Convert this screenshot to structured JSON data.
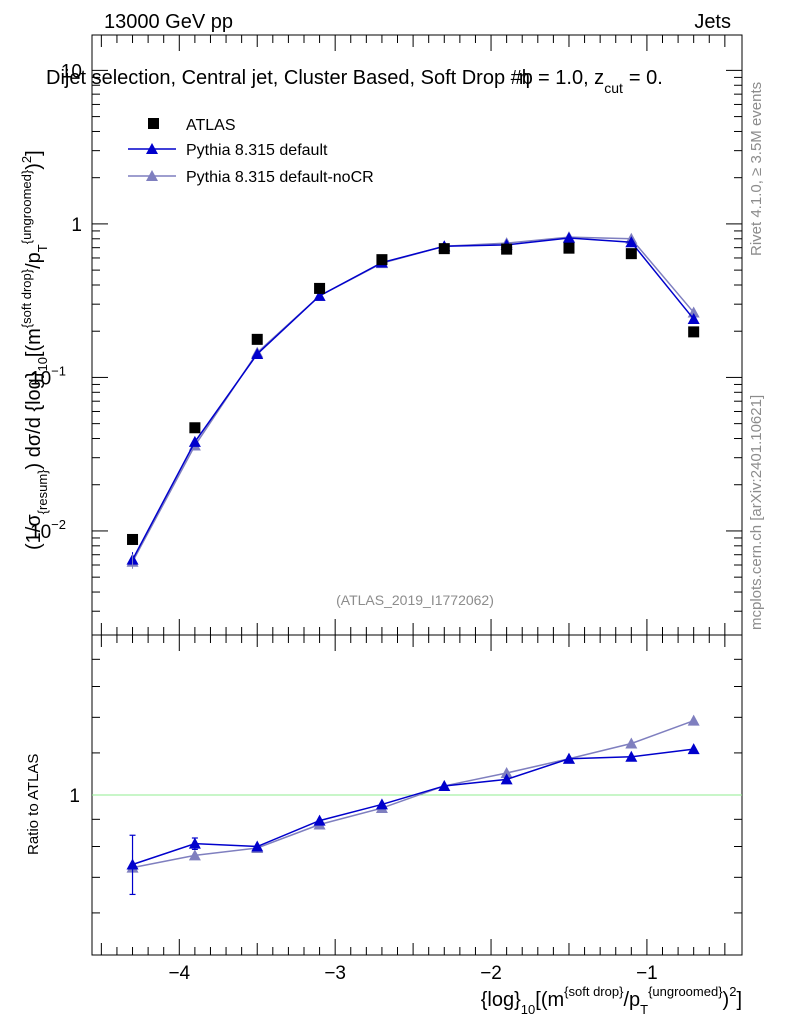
{
  "header": {
    "left": "13000 GeV pp",
    "right": "Jets",
    "title_prefix": "Dijet selection, Central jet, Cluster Based, Soft Drop #b",
    "title_suffix": "= 1.0, z",
    "title_sub": "cut",
    "title_end": "= 0.",
    "eta_char": "η"
  },
  "side_labels": {
    "rivet": "Rivet 4.1.0, ≥ 3.5M events",
    "mcplots": "mcplots.cern.ch [arXiv:2401.10621]"
  },
  "analysis_id": "(ATLAS_2019_I1772062)",
  "ylabel_main": "(1/σ{resum}) dσ/d {log}10[(m{soft drop}/pT{ungroomed})2]",
  "ylabel_ratio": "Ratio to ATLAS",
  "xlabel": "{log}10[(m{soft drop}/pT{ungroomed})2]",
  "legend": [
    "ATLAS",
    "Pythia 8.315 default",
    "Pythia 8.315 default-noCR"
  ],
  "colors": {
    "data": "#000000",
    "default": "#0000cc",
    "noCR": "#7f7fbf",
    "ref_line": "#90ee90"
  },
  "chart_data": [
    {
      "type": "line",
      "panel": "main",
      "yscale": "log",
      "x": [
        -4.3,
        -3.9,
        -3.5,
        -3.1,
        -2.7,
        -2.3,
        -1.9,
        -1.5,
        -1.1,
        -0.7
      ],
      "xlim": [
        -4.56,
        -0.39
      ],
      "ylim": [
        0.0021,
        17
      ],
      "y_ticks": [
        "10^-2",
        "10^-1",
        "1",
        "10"
      ],
      "x_ticks": [
        "−4",
        "−3",
        "−2",
        "−1"
      ],
      "series": [
        {
          "name": "ATLAS",
          "marker": "square",
          "values": [
            0.0088,
            0.047,
            0.177,
            0.38,
            0.585,
            0.69,
            0.685,
            0.695,
            0.64,
            0.198
          ]
        },
        {
          "name": "Pythia 8.315 default",
          "marker": "triangle",
          "values": [
            0.0065,
            0.038,
            0.142,
            0.34,
            0.56,
            0.715,
            0.73,
            0.81,
            0.76,
            0.24
          ]
        },
        {
          "name": "Pythia 8.315 default-noCR",
          "marker": "triangle",
          "values": [
            0.0063,
            0.036,
            0.145,
            0.34,
            0.555,
            0.715,
            0.75,
            0.82,
            0.8,
            0.265
          ]
        }
      ]
    },
    {
      "type": "line",
      "panel": "ratio",
      "yscale": "log",
      "x": [
        -4.3,
        -3.9,
        -3.5,
        -3.1,
        -2.7,
        -2.3,
        -1.9,
        -1.5,
        -1.1,
        -0.7
      ],
      "ylim": [
        0.5,
        2.0
      ],
      "y_ticks": [
        "1"
      ],
      "reference": 1.0,
      "series": [
        {
          "name": "Pythia 8.315 default",
          "values": [
            0.74,
            0.81,
            0.8,
            0.895,
            0.96,
            1.04,
            1.07,
            1.17,
            1.18,
            1.22
          ]
        },
        {
          "name": "Pythia 8.315 default-noCR",
          "values": [
            0.73,
            0.77,
            0.795,
            0.88,
            0.945,
            1.04,
            1.1,
            1.17,
            1.25,
            1.38
          ]
        }
      ]
    }
  ]
}
